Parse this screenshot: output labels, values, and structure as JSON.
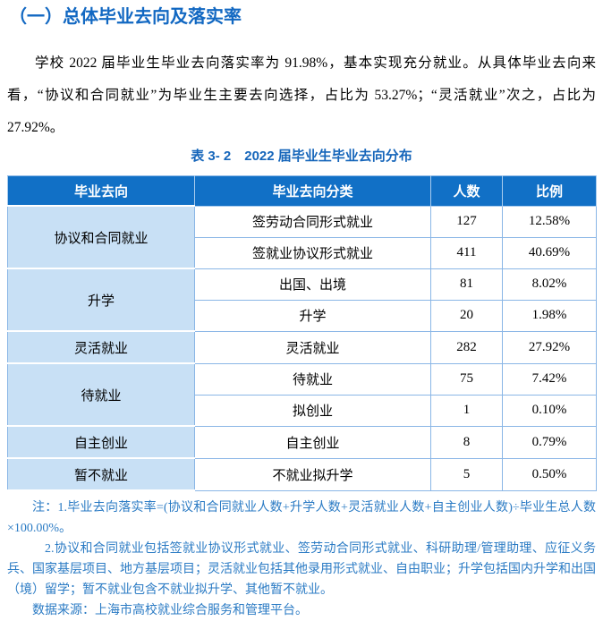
{
  "page": {
    "heading": "（一）总体毕业去向及落实率",
    "paragraph": "学校 2022 届毕业生毕业去向落实率为 91.98%，基本实现充分就业。从具体毕业去向来看，“协议和合同就业”为毕业生主要去向选择，占比为 53.27%；“灵活就业”次之，占比为 27.92%。"
  },
  "table": {
    "title": "表 3- 2　2022 届毕业生毕业去向分布",
    "headers": [
      "毕业去向",
      "毕业去向分类",
      "人数",
      "比例"
    ],
    "groups": [
      {
        "category": "协议和合同就业",
        "rows": [
          {
            "subcategory": "签劳动合同形式就业",
            "count": "127",
            "percent": "12.58%"
          },
          {
            "subcategory": "签就业协议形式就业",
            "count": "411",
            "percent": "40.69%"
          }
        ]
      },
      {
        "category": "升学",
        "rows": [
          {
            "subcategory": "出国、出境",
            "count": "81",
            "percent": "8.02%"
          },
          {
            "subcategory": "升学",
            "count": "20",
            "percent": "1.98%"
          }
        ]
      },
      {
        "category": "灵活就业",
        "rows": [
          {
            "subcategory": "灵活就业",
            "count": "282",
            "percent": "27.92%"
          }
        ]
      },
      {
        "category": "待就业",
        "rows": [
          {
            "subcategory": "待就业",
            "count": "75",
            "percent": "7.42%"
          },
          {
            "subcategory": "拟创业",
            "count": "1",
            "percent": "0.10%"
          }
        ]
      },
      {
        "category": "自主创业",
        "rows": [
          {
            "subcategory": "自主创业",
            "count": "8",
            "percent": "0.79%"
          }
        ]
      },
      {
        "category": "暂不就业",
        "rows": [
          {
            "subcategory": "不就业拟升学",
            "count": "5",
            "percent": "0.50%"
          }
        ]
      }
    ]
  },
  "notes": {
    "note1": "注：1.毕业去向落实率=(协议和合同就业人数+升学人数+灵活就业人数+自主创业人数)÷毕业生总人数×100.00%。",
    "note2": "2.协议和合同就业包括签就业协议形式就业、签劳动合同形式就业、科研助理/管理助理、应征义务兵、国家基层项目、地方基层项目；灵活就业包括其他录用形式就业、自由职业；升学包括国内升学和出国（境）留学；暂不就业包含不就业拟升学、其他暂不就业。",
    "note3": "数据来源：上海市高校就业综合服务和管理平台。"
  },
  "colors": {
    "heading_blue": "#1268C2",
    "table_title_blue": "#1565BA",
    "header_bg": "#1170C6",
    "header_text": "#FFFFFF",
    "category_cell_bg": "#C8E0F5",
    "border_blue": "#8AB6E6",
    "note_blue": "#2B7BC4",
    "body_text": "#000000"
  }
}
